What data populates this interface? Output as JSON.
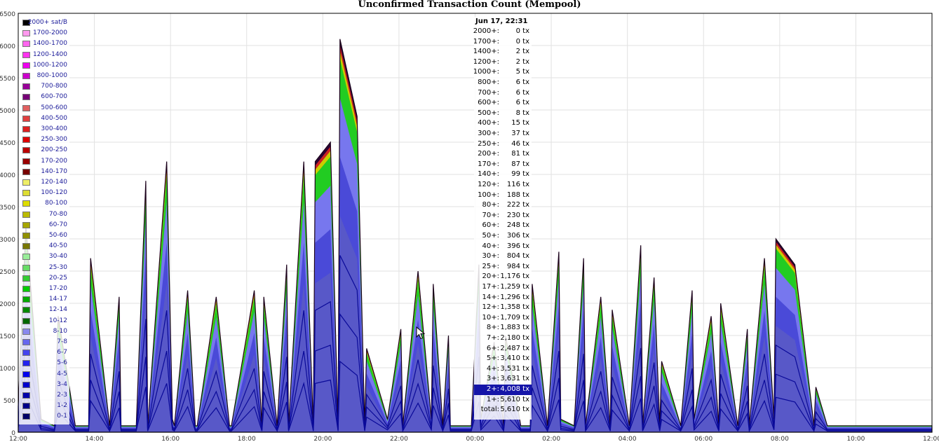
{
  "title": "Unconfirmed Transaction Count (Mempool)",
  "chart_data": {
    "type": "area",
    "title": "Unconfirmed Transaction Count (Mempool)",
    "xlabel": "",
    "ylabel": "",
    "ylim": [
      0,
      6500
    ],
    "yticks": [
      0,
      500,
      1000,
      1500,
      2000,
      2500,
      3000,
      3500,
      4000,
      4500,
      5000,
      5500,
      6000,
      6500
    ],
    "xtick_labels": [
      "12:00",
      "14:00",
      "16:00",
      "18:00",
      "20:00",
      "22:00",
      "00:00",
      "02:00",
      "04:00",
      "06:00",
      "08:00",
      "10:00",
      "12:00"
    ],
    "grid": true,
    "stacked": true,
    "legend_placement": "left",
    "fee_bands": [
      {
        "name": "2000+ sat/B",
        "color": "#000000"
      },
      {
        "name": "1700-2000",
        "color": "#ff99ee"
      },
      {
        "name": "1400-1700",
        "color": "#ff66ee"
      },
      {
        "name": "1200-1400",
        "color": "#ff33ee"
      },
      {
        "name": "1000-1200",
        "color": "#ee00ee"
      },
      {
        "name": "800-1000",
        "color": "#cc00cc"
      },
      {
        "name": "700-800",
        "color": "#990099"
      },
      {
        "name": "600-700",
        "color": "#770077"
      },
      {
        "name": "500-600",
        "color": "#e06060"
      },
      {
        "name": "400-500",
        "color": "#e04040"
      },
      {
        "name": "300-400",
        "color": "#dd2020"
      },
      {
        "name": "250-300",
        "color": "#dd0000"
      },
      {
        "name": "200-250",
        "color": "#bb0000"
      },
      {
        "name": "170-200",
        "color": "#990000"
      },
      {
        "name": "140-170",
        "color": "#770000"
      },
      {
        "name": "120-140",
        "color": "#eeee66"
      },
      {
        "name": "100-120",
        "color": "#dddd33"
      },
      {
        "name": "80-100",
        "color": "#dddd00"
      },
      {
        "name": "70-80",
        "color": "#bbbb00"
      },
      {
        "name": "60-70",
        "color": "#a6a600"
      },
      {
        "name": "50-60",
        "color": "#909000"
      },
      {
        "name": "40-50",
        "color": "#777700"
      },
      {
        "name": "30-40",
        "color": "#99ee99"
      },
      {
        "name": "25-30",
        "color": "#66dd66"
      },
      {
        "name": "20-25",
        "color": "#33cc33"
      },
      {
        "name": "17-20",
        "color": "#00cc00"
      },
      {
        "name": "14-17",
        "color": "#00aa00"
      },
      {
        "name": "12-14",
        "color": "#008800"
      },
      {
        "name": "10-12",
        "color": "#006600"
      },
      {
        "name": "8-10",
        "color": "#8888ee"
      },
      {
        "name": "7-8",
        "color": "#6666ee"
      },
      {
        "name": "6-7",
        "color": "#4444ee"
      },
      {
        "name": "5-6",
        "color": "#2222ee"
      },
      {
        "name": "4-5",
        "color": "#0000ee"
      },
      {
        "name": "3-4",
        "color": "#0000cc"
      },
      {
        "name": "2-3",
        "color": "#0000aa"
      },
      {
        "name": "1-2",
        "color": "#000088"
      },
      {
        "name": "0-1",
        "color": "#000066"
      }
    ],
    "total_series_hours": [
      0.0,
      0.2,
      0.6,
      0.95,
      1.05,
      1.5,
      1.85,
      1.9,
      2.4,
      2.65,
      2.7,
      3.1,
      3.35,
      3.4,
      3.9,
      4.05,
      4.1,
      4.45,
      4.65,
      4.7,
      5.2,
      5.55,
      5.6,
      6.2,
      6.4,
      6.45,
      6.8,
      7.05,
      7.1,
      7.5,
      7.75,
      7.8,
      8.2,
      8.4,
      8.45,
      8.9,
      9.1,
      9.15,
      9.7,
      10.05,
      10.1,
      10.5,
      10.85,
      10.9,
      11.15,
      11.3,
      11.35,
      11.9,
      12.1,
      12.15,
      12.5,
      12.75,
      12.8,
      13.2,
      13.45,
      13.5,
      13.9,
      14.2,
      14.25,
      14.6,
      14.85,
      14.9,
      15.3,
      15.55,
      15.6,
      16.05,
      16.35,
      16.4,
      16.7,
      16.85,
      16.9,
      17.4,
      17.7,
      17.75,
      18.2,
      18.4,
      18.45,
      18.9,
      19.15,
      19.2,
      19.6,
      19.85,
      19.9,
      20.4,
      20.9,
      20.95,
      21.25,
      21.6,
      21.65,
      22.1,
      22.3,
      22.35,
      22.85,
      23.05,
      23.1,
      23.4,
      23.7,
      23.75,
      24.0
    ],
    "total_series_values": [
      400,
      3200,
      200,
      100,
      1800,
      100,
      100,
      2700,
      100,
      2100,
      100,
      100,
      3900,
      100,
      4200,
      200,
      100,
      2200,
      100,
      100,
      2100,
      100,
      100,
      2200,
      100,
      2100,
      100,
      2600,
      100,
      4200,
      100,
      4200,
      4500,
      100,
      6100,
      4900,
      100,
      1300,
      200,
      1600,
      100,
      2500,
      200,
      2300,
      100,
      1500,
      100,
      100,
      2600,
      200,
      1400,
      100,
      1500,
      100,
      100,
      2300,
      100,
      2800,
      200,
      100,
      2700,
      100,
      2100,
      100,
      1900,
      100,
      2900,
      100,
      2400,
      100,
      1100,
      100,
      2200,
      200,
      1800,
      100,
      2000,
      100,
      1600,
      100,
      2700,
      200,
      3000,
      2600,
      100,
      700,
      100,
      100,
      100,
      100,
      100,
      100,
      100,
      100,
      100,
      100,
      100,
      100,
      100
    ]
  },
  "tooltip": {
    "time": "Jun 17, 22:31",
    "highlighted_row": "2+:",
    "rows": [
      {
        "k": "2000+:",
        "v": "0 tx"
      },
      {
        "k": "1700+:",
        "v": "0 tx"
      },
      {
        "k": "1400+:",
        "v": "2 tx"
      },
      {
        "k": "1200+:",
        "v": "2 tx"
      },
      {
        "k": "1000+:",
        "v": "5 tx"
      },
      {
        "k": "800+:",
        "v": "6 tx"
      },
      {
        "k": "700+:",
        "v": "6 tx"
      },
      {
        "k": "600+:",
        "v": "6 tx"
      },
      {
        "k": "500+:",
        "v": "8 tx"
      },
      {
        "k": "400+:",
        "v": "15 tx"
      },
      {
        "k": "300+:",
        "v": "37 tx"
      },
      {
        "k": "250+:",
        "v": "46 tx"
      },
      {
        "k": "200+:",
        "v": "81 tx"
      },
      {
        "k": "170+:",
        "v": "87 tx"
      },
      {
        "k": "140+:",
        "v": "99 tx"
      },
      {
        "k": "120+:",
        "v": "116 tx"
      },
      {
        "k": "100+:",
        "v": "188 tx"
      },
      {
        "k": "80+:",
        "v": "222 tx"
      },
      {
        "k": "70+:",
        "v": "230 tx"
      },
      {
        "k": "60+:",
        "v": "248 tx"
      },
      {
        "k": "50+:",
        "v": "306 tx"
      },
      {
        "k": "40+:",
        "v": "396 tx"
      },
      {
        "k": "30+:",
        "v": "804 tx"
      },
      {
        "k": "25+:",
        "v": "984 tx"
      },
      {
        "k": "20+:",
        "v": "1,176 tx"
      },
      {
        "k": "17+:",
        "v": "1,259 tx"
      },
      {
        "k": "14+:",
        "v": "1,296 tx"
      },
      {
        "k": "12+:",
        "v": "1,358 tx"
      },
      {
        "k": "10+:",
        "v": "1,709 tx"
      },
      {
        "k": "8+:",
        "v": "1,883 tx"
      },
      {
        "k": "7+:",
        "v": "2,180 tx"
      },
      {
        "k": "6+:",
        "v": "2,487 tx"
      },
      {
        "k": "5+:",
        "v": "3,410 tx"
      },
      {
        "k": "4+:",
        "v": "3,531 tx"
      },
      {
        "k": "3+:",
        "v": "3,631 tx"
      },
      {
        "k": "2+:",
        "v": "4,008 tx"
      },
      {
        "k": "1+:",
        "v": "5,610 tx"
      },
      {
        "k": "total:",
        "v": "5,610 tx"
      }
    ]
  },
  "cursor_icon": "mouse-pointer-icon"
}
